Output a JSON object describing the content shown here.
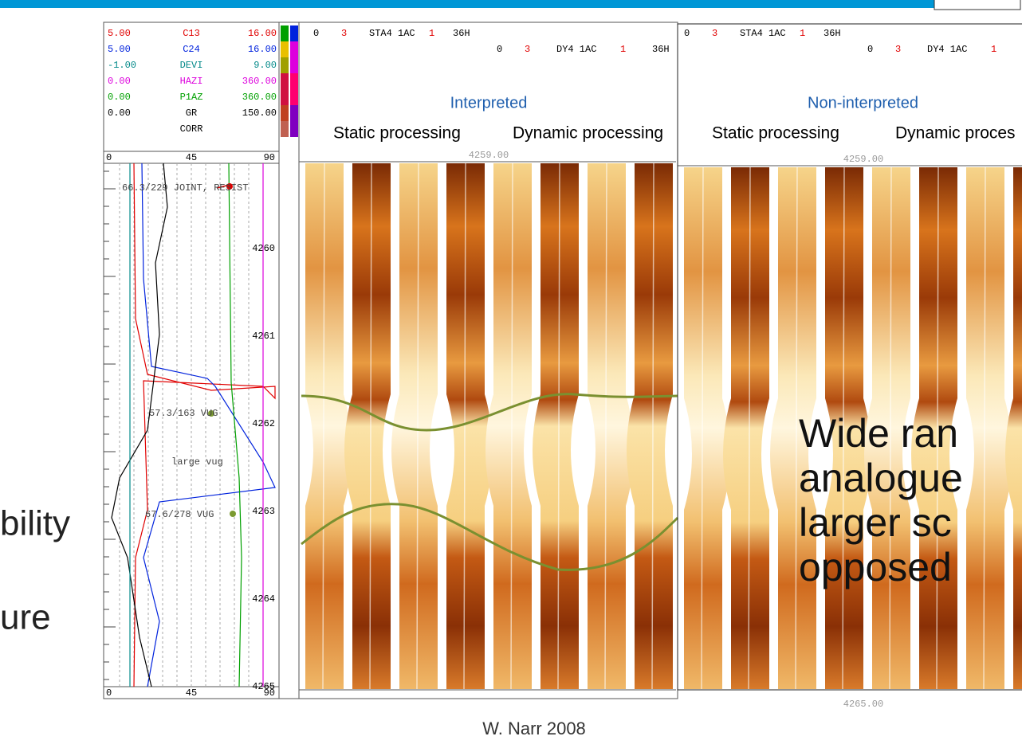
{
  "slide": {
    "left_text": [
      "bility",
      "ure"
    ],
    "overlay_text": [
      "Wide ran",
      "analogue",
      "larger sc",
      "opposed"
    ],
    "credit": "W. Narr 2008"
  },
  "log_track": {
    "header_rows": [
      {
        "left": "5.00",
        "name": "C13",
        "right": "16.00"
      },
      {
        "left": "5.00",
        "name": "C24",
        "right": "16.00"
      },
      {
        "left": "-1.00",
        "name": "DEVI",
        "right": "9.00"
      },
      {
        "left": "0.00",
        "name": "HAZI",
        "right": "360.00"
      },
      {
        "left": "0.00",
        "name": "P1AZ",
        "right": "360.00"
      },
      {
        "left": "0.00",
        "name": "GR",
        "right": "150.00"
      },
      {
        "name": "CORR"
      }
    ],
    "scale_top": [
      "0",
      "45",
      "90"
    ],
    "scale_bottom": [
      "0",
      "45",
      "90"
    ],
    "depths": [
      "4260",
      "4261",
      "4262",
      "4263",
      "4264",
      "4265"
    ],
    "annotations": [
      "66.3/229 JOINT, RESIST",
      "57.3/163 VUG",
      "large vug",
      "67.6/278 VUG"
    ]
  },
  "panels": [
    {
      "row1": [
        "0",
        "3",
        "STA4 1AC",
        "1",
        "36H"
      ],
      "row2": [
        "0",
        "3",
        "DY4 1AC",
        "1",
        "36H"
      ],
      "title": "Interpreted",
      "subtitles": [
        "Static processing",
        "Dynamic processing"
      ],
      "top_depth": "4259.00"
    },
    {
      "row1": [
        "0",
        "3",
        "STA4 1AC",
        "1",
        "36H"
      ],
      "row2": [
        "0",
        "3",
        "DY4 1AC",
        "1"
      ],
      "title": "Non-interpreted",
      "subtitles": [
        "Static processing",
        "Dynamic proces"
      ],
      "top_depth": "4259.00",
      "bottom_depth": "4265.00"
    }
  ]
}
